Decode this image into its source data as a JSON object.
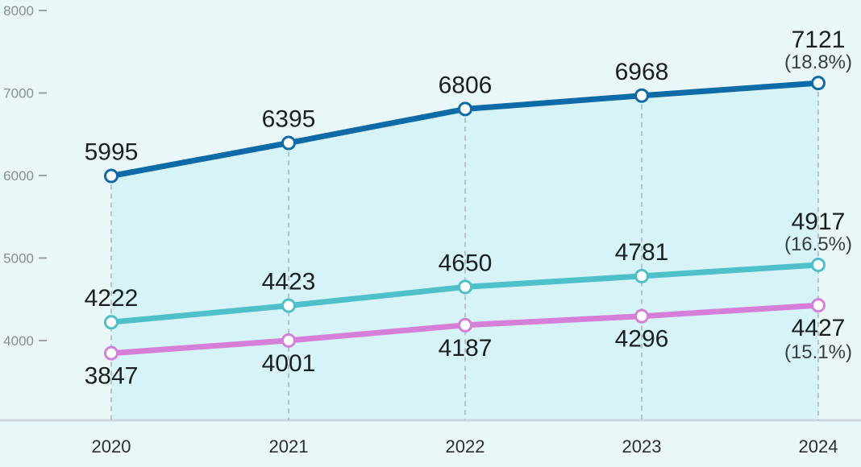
{
  "chart_data": {
    "type": "line",
    "title": "",
    "xlabel": "",
    "ylabel": "",
    "x": [
      "2020",
      "2021",
      "2022",
      "2023",
      "2024"
    ],
    "ylim": [
      3000,
      8000
    ],
    "yticks": [
      "8000",
      "7000",
      "6000",
      "5000",
      "4000"
    ],
    "grid": false,
    "series": [
      {
        "color": "#0f6aa8",
        "values": [
          5995,
          6395,
          6806,
          6968,
          7121
        ],
        "labels": [
          "5995",
          "6395",
          "6806",
          "6968",
          "7121"
        ],
        "last_annotation": "(18.8%)",
        "label_position": "above"
      },
      {
        "color": "#4fbfc9",
        "values": [
          4222,
          4423,
          4650,
          4781,
          4917
        ],
        "labels": [
          "4222",
          "4423",
          "4650",
          "4781",
          "4917"
        ],
        "last_annotation": "(16.5%)",
        "label_position": "above"
      },
      {
        "color": "#d57fd8",
        "values": [
          3847,
          4001,
          4187,
          4296,
          4427
        ],
        "labels": [
          "3847",
          "4001",
          "4187",
          "4296",
          "4427"
        ],
        "last_annotation": "(15.1%)",
        "label_position": "below"
      }
    ]
  }
}
